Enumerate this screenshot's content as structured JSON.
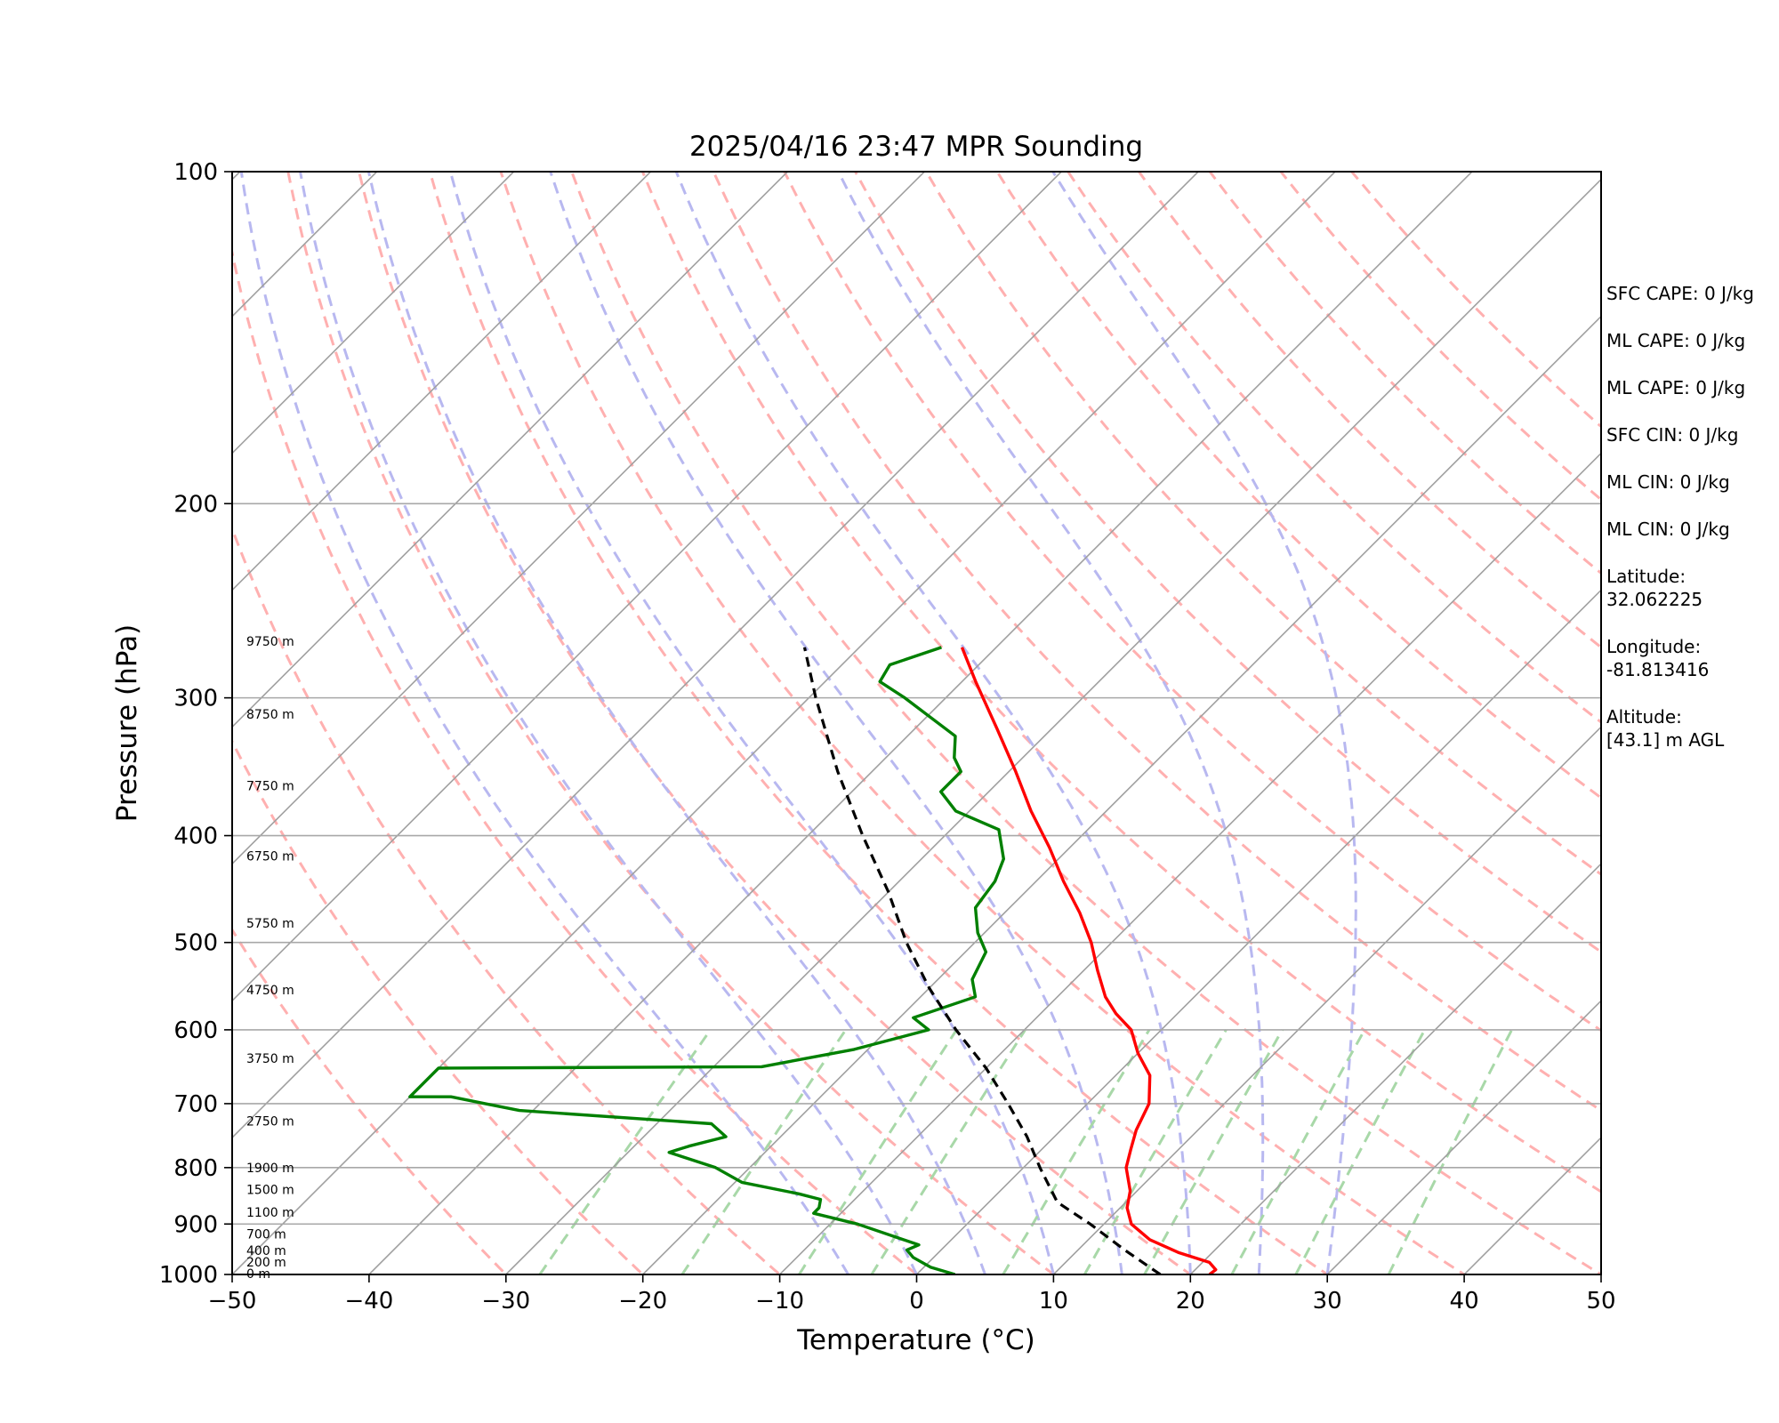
{
  "chart_data": {
    "type": "line",
    "title": "2025/04/16 23:47 MPR Sounding",
    "xlabel": "Temperature (°C)",
    "ylabel": "Pressure (hPa)",
    "xlim": [
      -50,
      50
    ],
    "ylim": [
      1000,
      100
    ],
    "y_scale": "log",
    "skew": "temperature lines skewed 45°",
    "x_ticks": [
      -50,
      -40,
      -30,
      -20,
      -10,
      0,
      10,
      20,
      30,
      40,
      50
    ],
    "y_ticks": [
      100,
      200,
      300,
      400,
      500,
      600,
      700,
      800,
      900,
      1000
    ],
    "grid": true,
    "series": [
      {
        "color": "#ff0000",
        "points": [
          {
            "p": 1000,
            "t": 21.4
          },
          {
            "p": 990,
            "t": 21.5
          },
          {
            "p": 975,
            "t": 20.5
          },
          {
            "p": 955,
            "t": 17.5
          },
          {
            "p": 930,
            "t": 14.5
          },
          {
            "p": 900,
            "t": 12.0
          },
          {
            "p": 870,
            "t": 10.5
          },
          {
            "p": 840,
            "t": 9.5
          },
          {
            "p": 800,
            "t": 7.5
          },
          {
            "p": 770,
            "t": 6.5
          },
          {
            "p": 740,
            "t": 5.5
          },
          {
            "p": 700,
            "t": 4.5
          },
          {
            "p": 660,
            "t": 2.5
          },
          {
            "p": 630,
            "t": 0.0
          },
          {
            "p": 600,
            "t": -2.2
          },
          {
            "p": 580,
            "t": -4.5
          },
          {
            "p": 560,
            "t": -6.5
          },
          {
            "p": 530,
            "t": -9.0
          },
          {
            "p": 500,
            "t": -11.5
          },
          {
            "p": 470,
            "t": -14.5
          },
          {
            "p": 440,
            "t": -18.0
          },
          {
            "p": 410,
            "t": -21.5
          },
          {
            "p": 380,
            "t": -25.5
          },
          {
            "p": 350,
            "t": -29.5
          },
          {
            "p": 320,
            "t": -34.0
          },
          {
            "p": 290,
            "t": -39.0
          },
          {
            "p": 270,
            "t": -42.5
          }
        ]
      },
      {
        "color": "#008000",
        "points": [
          {
            "p": 1000,
            "t": 2.8
          },
          {
            "p": 985,
            "t": 0.5
          },
          {
            "p": 965,
            "t": -1.5
          },
          {
            "p": 950,
            "t": -2.5
          },
          {
            "p": 940,
            "t": -2.0
          },
          {
            "p": 930,
            "t": -3.5
          },
          {
            "p": 900,
            "t": -8.0
          },
          {
            "p": 880,
            "t": -12.0
          },
          {
            "p": 870,
            "t": -12.0
          },
          {
            "p": 855,
            "t": -12.5
          },
          {
            "p": 845,
            "t": -14.5
          },
          {
            "p": 825,
            "t": -19.5
          },
          {
            "p": 800,
            "t": -22.5
          },
          {
            "p": 775,
            "t": -27.0
          },
          {
            "p": 765,
            "t": -26.0
          },
          {
            "p": 750,
            "t": -24.0
          },
          {
            "p": 730,
            "t": -26.0
          },
          {
            "p": 710,
            "t": -41.0
          },
          {
            "p": 700,
            "t": -44.0
          },
          {
            "p": 690,
            "t": -47.0
          },
          {
            "p": 690,
            "t": -50.0
          },
          {
            "p": 650,
            "t": -50.0
          },
          {
            "p": 648,
            "t": -26.5
          },
          {
            "p": 625,
            "t": -21.0
          },
          {
            "p": 600,
            "t": -17.0
          },
          {
            "p": 585,
            "t": -19.0
          },
          {
            "p": 560,
            "t": -16.0
          },
          {
            "p": 540,
            "t": -17.5
          },
          {
            "p": 510,
            "t": -18.5
          },
          {
            "p": 490,
            "t": -20.5
          },
          {
            "p": 465,
            "t": -22.5
          },
          {
            "p": 440,
            "t": -23.0
          },
          {
            "p": 420,
            "t": -24.0
          },
          {
            "p": 395,
            "t": -26.5
          },
          {
            "p": 380,
            "t": -31.0
          },
          {
            "p": 365,
            "t": -33.5
          },
          {
            "p": 350,
            "t": -33.5
          },
          {
            "p": 340,
            "t": -35.0
          },
          {
            "p": 325,
            "t": -36.5
          },
          {
            "p": 300,
            "t": -43.0
          },
          {
            "p": 290,
            "t": -46.0
          },
          {
            "p": 280,
            "t": -46.5
          },
          {
            "p": 270,
            "t": -44.0
          }
        ]
      },
      {
        "color": "#000000",
        "dashed": true,
        "points": [
          {
            "p": 1000,
            "t": 17.8
          },
          {
            "p": 950,
            "t": 13.4
          },
          {
            "p": 900,
            "t": 9.0
          },
          {
            "p": 860,
            "t": 5.0
          },
          {
            "p": 800,
            "t": 1.2
          },
          {
            "p": 750,
            "t": -2.0
          },
          {
            "p": 700,
            "t": -5.8
          },
          {
            "p": 650,
            "t": -10.0
          },
          {
            "p": 600,
            "t": -15.0
          },
          {
            "p": 550,
            "t": -20.0
          },
          {
            "p": 500,
            "t": -25.0
          },
          {
            "p": 450,
            "t": -30.0
          },
          {
            "p": 400,
            "t": -36.0
          },
          {
            "p": 350,
            "t": -42.5
          },
          {
            "p": 300,
            "t": -49.5
          },
          {
            "p": 270,
            "t": -54.0
          }
        ]
      }
    ],
    "height_labels": [
      {
        "p": 1000,
        "text": "0 m"
      },
      {
        "p": 976,
        "text": "200 m"
      },
      {
        "p": 953,
        "text": "400 m"
      },
      {
        "p": 921,
        "text": "700 m"
      },
      {
        "p": 880,
        "text": "1100 m"
      },
      {
        "p": 839,
        "text": "1500 m"
      },
      {
        "p": 802,
        "text": "1900 m"
      },
      {
        "p": 727,
        "text": "2750 m"
      },
      {
        "p": 638,
        "text": "3750 m"
      },
      {
        "p": 553,
        "text": "4750 m"
      },
      {
        "p": 481,
        "text": "5750 m"
      },
      {
        "p": 418,
        "text": "6750 m"
      },
      {
        "p": 361,
        "text": "7750 m"
      },
      {
        "p": 311,
        "text": "8750 m"
      },
      {
        "p": 267,
        "text": "9750 m"
      }
    ],
    "reference_lines": {
      "isotherms_c": [
        -180,
        -170,
        -160,
        -150,
        -140,
        -130,
        -120,
        -110,
        -100,
        -90,
        -80,
        -70,
        -60,
        -50,
        -40,
        -30,
        -20,
        -10,
        0,
        10,
        20,
        30,
        40,
        50
      ],
      "dry_adiabats_c": [
        -30,
        -20,
        -10,
        0,
        10,
        20,
        30,
        40,
        50,
        60,
        70,
        80,
        90,
        100,
        110,
        120,
        130,
        140,
        150,
        160
      ],
      "moist_adiabats_c": [
        -5,
        0,
        5,
        10,
        15,
        20,
        25,
        30
      ],
      "mixing_ratios_gkg": [
        0.4,
        1,
        2,
        3,
        6,
        9,
        12,
        18,
        24,
        36
      ],
      "isotherm_color": "#a0a0a0",
      "dry_adiabat_color": "#ffb0b0",
      "moist_adiabat_color": "#b8b8f0",
      "mixing_ratio_color": "#a8d8a8"
    }
  },
  "side_panel": {
    "stats": [
      "SFC CAPE: 0 J/kg",
      "ML CAPE: 0 J/kg",
      "ML CAPE: 0 J/kg",
      "SFC CIN: 0 J/kg",
      "ML CIN: 0 J/kg",
      "ML CIN: 0 J/kg"
    ],
    "latitude_label": "Latitude:",
    "latitude_value": "32.062225",
    "longitude_label": "Longitude:",
    "longitude_value": "-81.813416",
    "altitude_label": "Altitude:",
    "altitude_value": "[43.1] m AGL"
  }
}
